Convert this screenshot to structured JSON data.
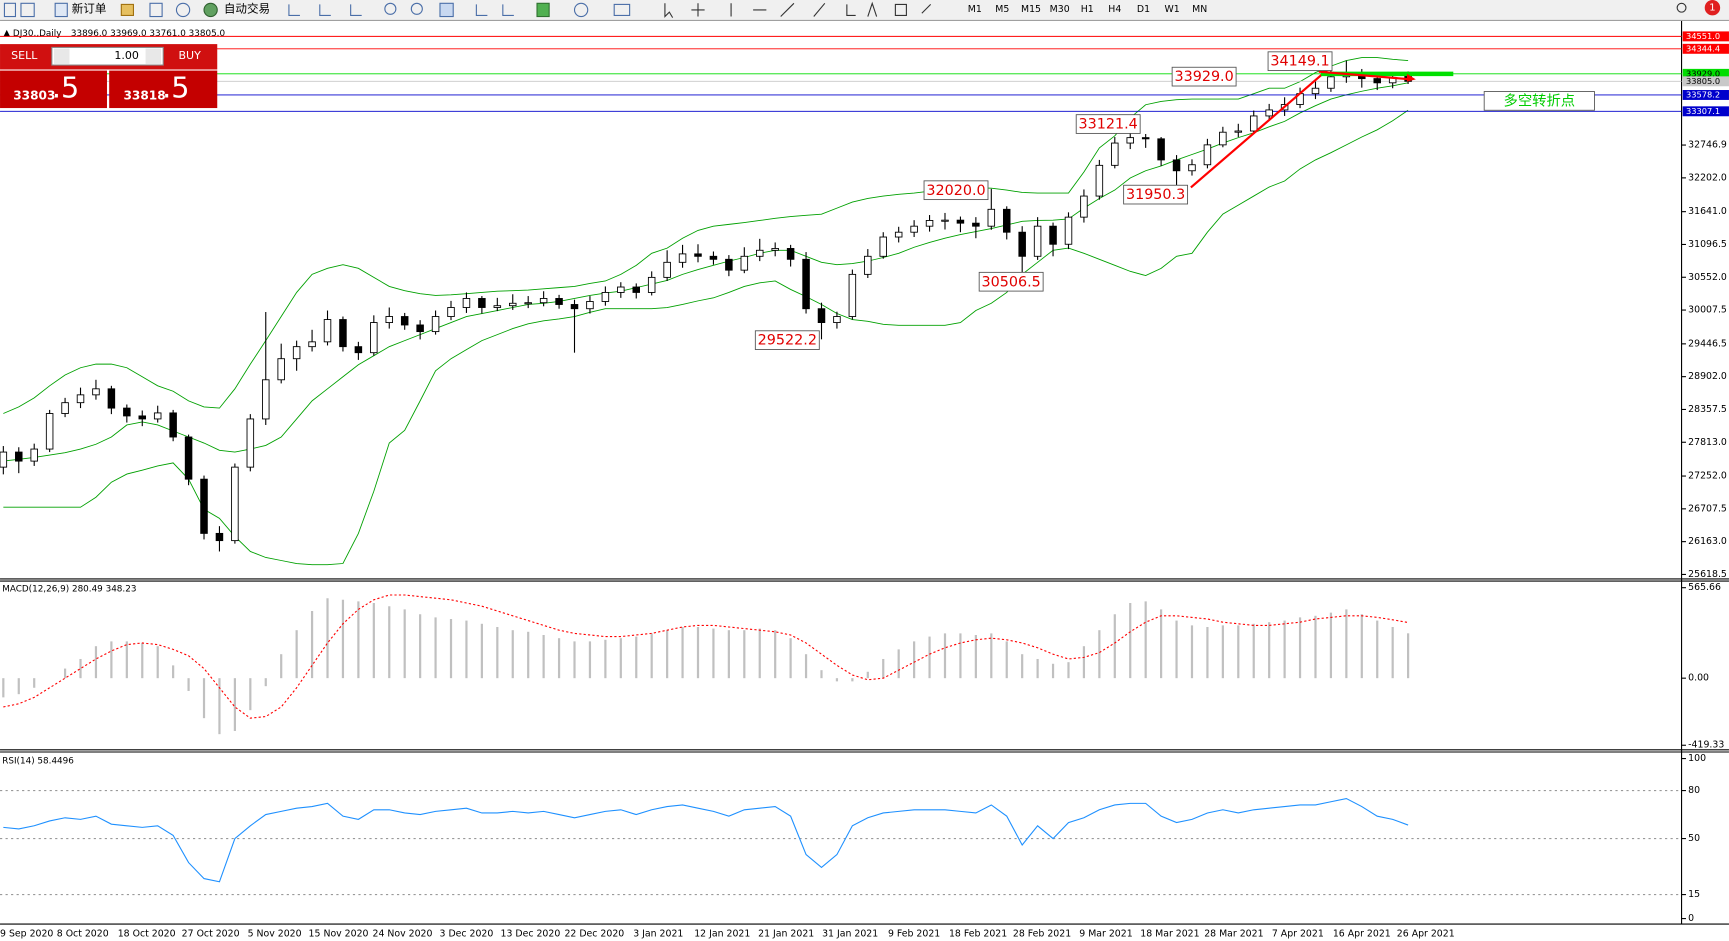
{
  "toolbar": {
    "new_order": "新订单",
    "auto_trading": "自动交易",
    "timeframes": [
      "M1",
      "M5",
      "M15",
      "M30",
      "H1",
      "H4",
      "D1",
      "W1",
      "MN"
    ],
    "notifications": 1
  },
  "trade_panel": {
    "sell": "SELL",
    "lots": "1.00",
    "buy": "BUY",
    "bid_main": "33803",
    "bid_pips": ".5",
    "ask_main": "33818",
    "ask_pips": ".5"
  },
  "chart_data": [
    {
      "type": "candlestick",
      "title": "DJ30.,Daily",
      "ohlc_labels": [
        "33896.0",
        "33969.0",
        "33761.0",
        "33805.0"
      ],
      "open": [
        27400,
        27650,
        27500,
        27700,
        28290,
        28470,
        28600,
        28700,
        28380,
        28250,
        28200,
        28300,
        27900,
        27200,
        26300,
        26180,
        27400,
        28200,
        28850,
        29200,
        29400,
        29480,
        29850,
        29400,
        29300,
        29800,
        29900,
        29760,
        29650,
        29900,
        30050,
        30200,
        30050,
        30080,
        30120,
        30130,
        30200,
        30100,
        30030,
        30150,
        30300,
        30390,
        30300,
        30550,
        30800,
        30940,
        30900,
        30850,
        30670,
        30900,
        31000,
        31030,
        30850,
        30030,
        29800,
        29900,
        30600,
        30900,
        31220,
        31300,
        31400,
        31495,
        31500,
        31450,
        31400,
        31680,
        31300,
        30900,
        31400,
        31100,
        31550,
        31900,
        32410,
        32780,
        32870,
        32850,
        32500,
        32320,
        32420,
        32750,
        32960,
        32980,
        33230,
        33330,
        33420,
        33600,
        33690,
        33880,
        33950,
        33850,
        33780,
        33896
      ],
      "high": [
        27750,
        27730,
        27790,
        28350,
        28550,
        28720,
        28850,
        28750,
        28440,
        28340,
        28420,
        28350,
        27940,
        27260,
        26420,
        27460,
        28280,
        29975,
        29450,
        29500,
        29680,
        30000,
        29900,
        29480,
        29920,
        30050,
        29960,
        29840,
        30000,
        30160,
        30300,
        30240,
        30210,
        30270,
        30240,
        30320,
        30260,
        30180,
        30240,
        30400,
        30470,
        30450,
        30650,
        31000,
        31090,
        31100,
        30980,
        30920,
        31050,
        31190,
        31130,
        31090,
        30970,
        30130,
        29980,
        30680,
        31020,
        31300,
        31390,
        31500,
        31585,
        31620,
        31560,
        31550,
        32020,
        31730,
        31400,
        31550,
        31460,
        31630,
        32010,
        32500,
        32880,
        33121,
        32930,
        32880,
        32580,
        32510,
        32850,
        33050,
        33100,
        33320,
        33430,
        33540,
        33700,
        33800,
        34000,
        34149,
        34010,
        33950,
        33960,
        33969
      ],
      "low": [
        27280,
        27300,
        27420,
        27650,
        28230,
        28380,
        28520,
        28280,
        28140,
        28080,
        28140,
        27830,
        27100,
        26200,
        26000,
        26130,
        27330,
        28100,
        28790,
        29000,
        29320,
        29420,
        29320,
        29180,
        29250,
        29700,
        29680,
        29520,
        29600,
        29840,
        29960,
        29950,
        29990,
        30010,
        30040,
        30070,
        30030,
        29300,
        29950,
        30080,
        30210,
        30200,
        30250,
        30490,
        30710,
        30800,
        30760,
        30570,
        30620,
        30820,
        30900,
        30730,
        29950,
        29522,
        29700,
        29850,
        30540,
        30860,
        31130,
        31220,
        31310,
        31345,
        31300,
        31200,
        31340,
        31180,
        30506,
        30840,
        30900,
        31020,
        31460,
        31840,
        32360,
        32680,
        32700,
        32400,
        31950,
        32240,
        32360,
        32710,
        32880,
        32930,
        33160,
        33230,
        33360,
        33510,
        33630,
        33780,
        33700,
        33660,
        33690,
        33761
      ],
      "close": [
        27650,
        27500,
        27700,
        28290,
        28470,
        28600,
        28700,
        28380,
        28250,
        28200,
        28300,
        27900,
        27200,
        26300,
        26180,
        27400,
        28200,
        28850,
        29200,
        29400,
        29480,
        29850,
        29400,
        29300,
        29800,
        29900,
        29760,
        29650,
        29900,
        30050,
        30200,
        30050,
        30080,
        30120,
        30130,
        30200,
        30100,
        30030,
        30150,
        30300,
        30390,
        30300,
        30550,
        30800,
        30940,
        30900,
        30850,
        30670,
        30900,
        31000,
        31030,
        30850,
        30030,
        29800,
        29900,
        30600,
        30900,
        31220,
        31300,
        31400,
        31495,
        31500,
        31450,
        31400,
        31680,
        31300,
        30900,
        31400,
        31100,
        31550,
        31900,
        32410,
        32780,
        32870,
        32850,
        32500,
        32320,
        32420,
        32750,
        32960,
        32980,
        33230,
        33330,
        33420,
        33600,
        33690,
        33880,
        33950,
        33850,
        33780,
        33870,
        33805
      ],
      "bands": {
        "color": "#00a000",
        "upper": [
          28290,
          28400,
          28550,
          28750,
          28930,
          29050,
          29110,
          29110,
          29050,
          28900,
          28750,
          28660,
          28500,
          28400,
          28380,
          28700,
          29110,
          29500,
          29900,
          30300,
          30600,
          30700,
          30760,
          30700,
          30550,
          30400,
          30330,
          30280,
          30250,
          30260,
          30280,
          30300,
          30320,
          30330,
          30340,
          30360,
          30380,
          30400,
          30450,
          30490,
          30600,
          30750,
          30950,
          31036,
          31200,
          31330,
          31400,
          31430,
          31460,
          31495,
          31530,
          31560,
          31580,
          31600,
          31700,
          31800,
          31860,
          31900,
          31930,
          31950,
          31980,
          32000,
          32030,
          32040,
          32030,
          32000,
          31960,
          31950,
          31950,
          31950,
          32300,
          32700,
          32900,
          33200,
          33416,
          33470,
          33500,
          33510,
          33510,
          33510,
          33510,
          33600,
          33690,
          33690,
          33800,
          33950,
          34057,
          34150,
          34200,
          34200,
          34170,
          34150
        ],
        "middle": [
          27500,
          27530,
          27560,
          27600,
          27640,
          27700,
          27780,
          27900,
          28100,
          28150,
          28100,
          28000,
          27900,
          27800,
          27680,
          27650,
          27700,
          27760,
          27900,
          28200,
          28500,
          28700,
          28900,
          29100,
          29250,
          29400,
          29500,
          29600,
          29700,
          29800,
          29900,
          29950,
          30000,
          30050,
          30100,
          30120,
          30150,
          30200,
          30250,
          30290,
          30320,
          30380,
          30440,
          30500,
          30600,
          30680,
          30750,
          30820,
          30880,
          30950,
          31000,
          31000,
          30900,
          30800,
          30760,
          30780,
          30820,
          30880,
          30950,
          31050,
          31130,
          31200,
          31260,
          31310,
          31360,
          31420,
          31480,
          31495,
          31500,
          31520,
          31700,
          31860,
          32000,
          32200,
          32320,
          32400,
          32500,
          32590,
          32680,
          32780,
          32870,
          32950,
          33050,
          33140,
          33280,
          33400,
          33510,
          33580,
          33640,
          33690,
          33730,
          33780
        ],
        "lower": [
          26735,
          26735,
          26735,
          26735,
          26735,
          26735,
          26900,
          27150,
          27285,
          27350,
          27420,
          27470,
          27200,
          26700,
          26550,
          26250,
          26000,
          25900,
          25850,
          25800,
          25780,
          25780,
          25800,
          26300,
          27000,
          27800,
          28010,
          28500,
          29000,
          29200,
          29350,
          29500,
          29600,
          29700,
          29780,
          29830,
          29860,
          29900,
          29970,
          30030,
          30030,
          30030,
          30030,
          30050,
          30100,
          30160,
          30210,
          30300,
          30400,
          30460,
          30490,
          30350,
          30230,
          30100,
          29950,
          29850,
          29820,
          29770,
          29755,
          29755,
          29755,
          29755,
          29800,
          30000,
          30120,
          30300,
          30600,
          30800,
          31000,
          31036,
          30950,
          30850,
          30750,
          30650,
          30580,
          30700,
          30900,
          30950,
          31300,
          31600,
          31750,
          31900,
          32050,
          32150,
          32350,
          32500,
          32620,
          32750,
          32880,
          33000,
          33150,
          33325
        ]
      },
      "ylim": [
        25563,
        34624
      ],
      "yticks": [
        {
          "value": 32746.9,
          "label": "32746.9"
        },
        {
          "value": 32202,
          "label": "32202.0"
        },
        {
          "value": 31641,
          "label": "31641.0"
        },
        {
          "value": 31096.5,
          "label": "31096.5"
        },
        {
          "value": 30552,
          "label": "30552.0"
        },
        {
          "value": 30007.5,
          "label": "30007.5"
        },
        {
          "value": 29446.5,
          "label": "29446.5"
        },
        {
          "value": 28902,
          "label": "28902.0"
        },
        {
          "value": 28357.5,
          "label": "28357.5"
        },
        {
          "value": 27813,
          "label": "27813.0"
        },
        {
          "value": 27252,
          "label": "27252.0"
        },
        {
          "value": 26707.5,
          "label": "26707.5"
        },
        {
          "value": 26163,
          "label": "26163.0"
        },
        {
          "value": 25618.5,
          "label": "25618.5"
        }
      ],
      "levels": [
        {
          "value": 34551,
          "label": "34551.0",
          "color": "#ff0000",
          "text_color": "#ffffff"
        },
        {
          "value": 34344.4,
          "label": "34344.4",
          "color": "#ff0000",
          "text_color": "#ffffff"
        },
        {
          "value": 33929,
          "label": "33929.0",
          "color": "#00dd00",
          "text_color": "#000000"
        },
        {
          "value": 33805,
          "label": "33805.0",
          "color": "#c8c8c8",
          "text_color": "#000000"
        },
        {
          "value": 33578.2,
          "label": "33578.2",
          "color": "#0000cc",
          "text_color": "#ffffff"
        },
        {
          "value": 33307.1,
          "label": "33307.1",
          "color": "#0000cc",
          "text_color": "#ffffff"
        }
      ],
      "annotations": [
        {
          "text": "34149.1",
          "color": "#e00000"
        },
        {
          "text": "33929.0",
          "color": "#e00000"
        },
        {
          "text": "33121.4",
          "color": "#e00000"
        },
        {
          "text": "32020.0",
          "color": "#e00000"
        },
        {
          "text": "31950.3",
          "color": "#e00000"
        },
        {
          "text": "30506.5",
          "color": "#e00000"
        },
        {
          "text": "29522.2",
          "color": "#e00000"
        },
        {
          "text": "多空转折点",
          "color": "#00cc00"
        }
      ],
      "x_labels": [
        "9 Sep 2020",
        "8 Oct 2020",
        "18 Oct 2020",
        "27 Oct 2020",
        "5 Nov 2020",
        "15 Nov 2020",
        "24 Nov 2020",
        "3 Dec 2020",
        "13 Dec 2020",
        "22 Dec 2020",
        "3 Jan 2021",
        "12 Jan 2021",
        "21 Jan 2021",
        "31 Jan 2021",
        "9 Feb 2021",
        "18 Feb 2021",
        "28 Feb 2021",
        "9 Mar 2021",
        "18 Mar 2021",
        "28 Mar 2021",
        "7 Apr 2021",
        "16 Apr 2021",
        "26 Apr 2021"
      ]
    },
    {
      "type": "macd",
      "title": "MACD(12,26,9) 280.49 348.23",
      "hist_color": "#c0c0c0",
      "signal_color": "#ff0000",
      "macd": [
        -120,
        -100,
        -60,
        0,
        60,
        120,
        200,
        230,
        230,
        220,
        200,
        80,
        -80,
        -250,
        -350,
        -330,
        -200,
        -50,
        150,
        300,
        420,
        500,
        490,
        480,
        470,
        450,
        430,
        400,
        380,
        370,
        360,
        340,
        320,
        300,
        290,
        270,
        250,
        230,
        230,
        240,
        250,
        260,
        280,
        300,
        320,
        320,
        310,
        300,
        300,
        310,
        300,
        250,
        150,
        50,
        -20,
        -20,
        40,
        120,
        180,
        230,
        260,
        280,
        280,
        270,
        280,
        230,
        150,
        120,
        90,
        100,
        200,
        300,
        400,
        470,
        480,
        430,
        360,
        330,
        320,
        330,
        330,
        340,
        350,
        360,
        380,
        390,
        410,
        430,
        400,
        360,
        320,
        280.49
      ],
      "signal": [
        -180,
        -160,
        -120,
        -60,
        0,
        60,
        120,
        170,
        210,
        220,
        210,
        180,
        140,
        60,
        -60,
        -180,
        -250,
        -240,
        -180,
        -60,
        80,
        220,
        340,
        430,
        490,
        520,
        520,
        510,
        500,
        490,
        470,
        450,
        420,
        390,
        360,
        330,
        300,
        280,
        270,
        260,
        260,
        270,
        280,
        300,
        320,
        330,
        330,
        320,
        310,
        300,
        290,
        270,
        220,
        150,
        80,
        20,
        -10,
        0,
        50,
        100,
        150,
        190,
        220,
        240,
        250,
        240,
        220,
        190,
        150,
        120,
        130,
        160,
        220,
        290,
        350,
        390,
        390,
        380,
        370,
        350,
        340,
        330,
        330,
        340,
        350,
        370,
        380,
        390,
        390,
        380,
        365,
        348.23
      ],
      "ylim": [
        -434,
        600
      ],
      "yticks": [
        565.66,
        {
          "value": 0,
          "label": "0.00"
        },
        -419.33
      ]
    },
    {
      "type": "line",
      "title": "RSI(14) 58.4496",
      "color": "#1e90ff",
      "values": [
        57,
        56,
        58,
        61,
        63,
        62,
        64,
        59,
        58,
        57,
        58,
        52,
        35,
        25,
        23,
        50,
        58,
        65,
        67,
        69,
        70,
        72,
        64,
        62,
        68,
        68,
        66,
        65,
        67,
        68,
        69,
        66,
        66,
        67,
        66,
        67,
        65,
        63,
        65,
        67,
        68,
        65,
        68,
        70,
        71,
        69,
        67,
        64,
        68,
        69,
        70,
        64,
        40,
        32,
        40,
        58,
        63,
        66,
        67,
        68,
        68,
        68,
        67,
        66,
        71,
        64,
        46,
        58,
        50,
        60,
        63,
        68,
        71,
        72,
        72,
        64,
        60,
        62,
        66,
        68,
        66,
        68,
        69,
        70,
        71,
        71,
        73,
        75,
        70,
        64,
        62,
        58.4496
      ],
      "ylim": [
        -3.4,
        104.1
      ],
      "yticks": [
        100,
        80,
        50,
        15,
        0
      ],
      "levels": [
        80,
        50,
        15
      ]
    }
  ]
}
